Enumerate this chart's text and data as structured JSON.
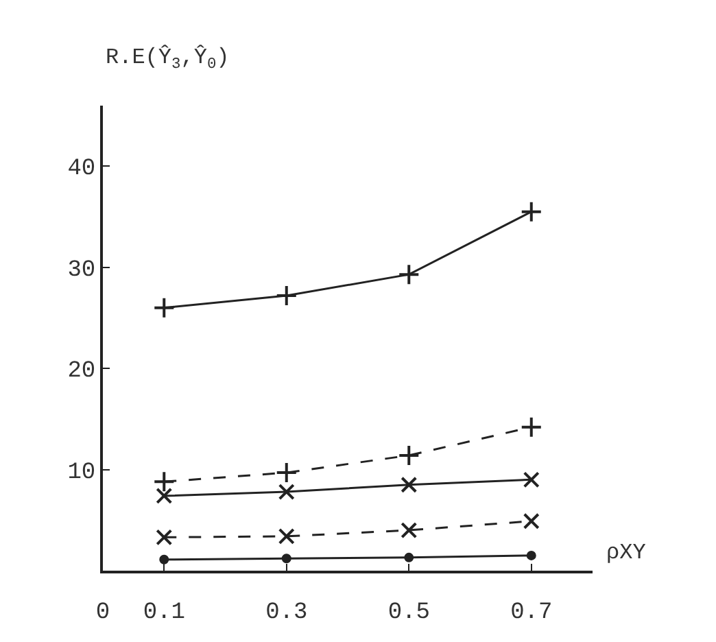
{
  "chart_data": {
    "type": "line",
    "ylabel": "R.E(Ŷ$_{3}$,Ŷ$_{0}$)",
    "xlabel": "ρXY",
    "x": [
      0.1,
      0.3,
      0.5,
      0.7
    ],
    "series": [
      {
        "color": "#222222",
        "values": [
          26.0,
          27.2,
          29.3,
          35.5
        ],
        "marker": "cross",
        "line_style": "solid"
      },
      {
        "color": "#222222",
        "values": [
          8.8,
          9.7,
          11.4,
          14.2
        ],
        "marker": "cross",
        "line_style": "dashed"
      },
      {
        "color": "#222222",
        "values": [
          7.4,
          7.8,
          8.5,
          9.0
        ],
        "marker": "x",
        "line_style": "solid"
      },
      {
        "color": "#222222",
        "values": [
          3.3,
          3.4,
          4.0,
          4.9
        ],
        "marker": "x",
        "line_style": "dashed"
      },
      {
        "color": "#222222",
        "values": [
          1.1,
          1.2,
          1.3,
          1.5
        ],
        "marker": "circle",
        "line_style": "solid"
      }
    ],
    "xlim": [
      0,
      0.8
    ],
    "xticks": [
      0,
      0.1,
      0.3,
      0.5,
      0.7
    ],
    "ylim": [
      0,
      46
    ],
    "yticks": [
      10,
      20,
      30,
      40
    ]
  }
}
